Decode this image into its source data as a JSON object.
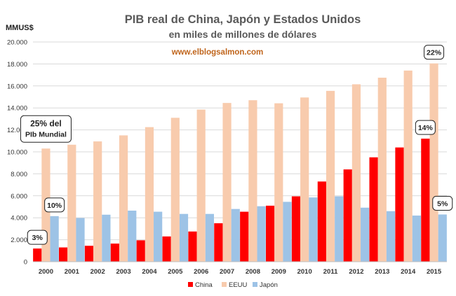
{
  "chart_data": {
    "type": "bar",
    "title": "PIB real de China, Japón y Estados Unidos",
    "subtitle": "en miles de millones de dólares",
    "source": "www.elblogsalmon.com",
    "ylabel": "MMUS$",
    "xlabel": "",
    "ylim": [
      0,
      20000
    ],
    "y_ticks": [
      "0",
      "2.000",
      "4.000",
      "6.000",
      "8.000",
      "10.000",
      "12.000",
      "14.000",
      "16.000",
      "18.000",
      "20.000"
    ],
    "grid": true,
    "legend_position": "bottom",
    "categories": [
      "2000",
      "2001",
      "2002",
      "2003",
      "2004",
      "2005",
      "2006",
      "2007",
      "2008",
      "2009",
      "2010",
      "2011",
      "2012",
      "2013",
      "2014",
      "2015"
    ],
    "series": [
      {
        "name": "China",
        "color": "#ff0000",
        "values": [
          1200,
          1300,
          1450,
          1650,
          1950,
          2300,
          2750,
          3500,
          4550,
          5100,
          5950,
          7300,
          8400,
          9500,
          10400,
          11200
        ]
      },
      {
        "name": "EEUU",
        "color": "#f8cbad",
        "values": [
          10300,
          10650,
          10950,
          11500,
          12250,
          13100,
          13850,
          14450,
          14700,
          14420,
          14950,
          15550,
          16150,
          16750,
          17400,
          18050
        ]
      },
      {
        "name": "Japón",
        "color": "#9dc3e6",
        "values": [
          4150,
          3980,
          4280,
          4650,
          4550,
          4350,
          4350,
          4800,
          5050,
          5450,
          5850,
          5950,
          4920,
          4600,
          4200,
          4300
        ]
      }
    ],
    "annotations": [
      {
        "line1": "25% del",
        "line2": "PIb Mundial",
        "series": 1,
        "index": 0
      },
      {
        "line1": "10%",
        "series": 2,
        "index": 0
      },
      {
        "line1": "3%",
        "series": 0,
        "index": 0
      },
      {
        "line1": "14%",
        "series": 0,
        "index": 15
      },
      {
        "line1": "22%",
        "series": 1,
        "index": 15
      },
      {
        "line1": "5%",
        "series": 2,
        "index": 15
      }
    ]
  }
}
